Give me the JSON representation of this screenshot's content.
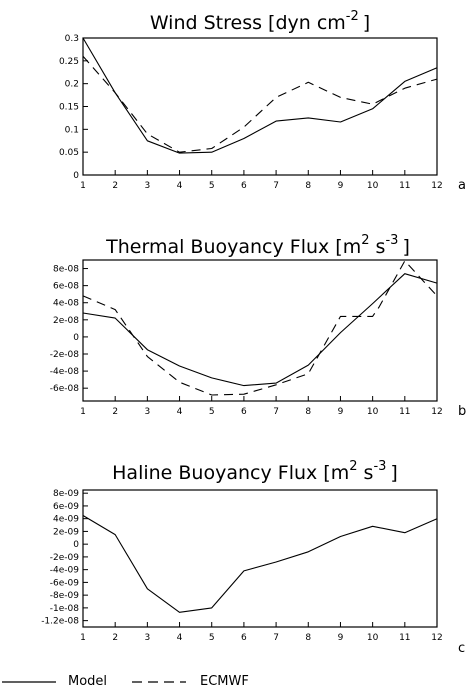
{
  "legend": {
    "model_label": "Model",
    "ecmwf_label": "ECMWF"
  },
  "chart_data": [
    {
      "type": "line",
      "panel_label": "a",
      "title": "Wind Stress [dyn cm",
      "title_sup": "-2",
      "title_end": "]",
      "x": [
        1,
        2,
        3,
        4,
        5,
        6,
        7,
        8,
        9,
        10,
        11,
        12
      ],
      "x_ticks": [
        "1",
        "2",
        "3",
        "4",
        "5",
        "6",
        "7",
        "8",
        "9",
        "10",
        "11",
        "12"
      ],
      "ylim": [
        0,
        0.3
      ],
      "y_ticks": [
        0,
        0.05,
        0.1,
        0.15,
        0.2,
        0.25,
        0.3
      ],
      "y_tick_labels": [
        "0",
        "0.05",
        "0.1",
        "0.15",
        "0.2",
        "0.25",
        "0.3"
      ],
      "series": [
        {
          "name": "Model",
          "style": "solid",
          "values": [
            0.3,
            0.18,
            0.075,
            0.048,
            0.05,
            0.08,
            0.118,
            0.125,
            0.116,
            0.145,
            0.205,
            0.235
          ]
        },
        {
          "name": "ECMWF",
          "style": "dashed",
          "values": [
            0.26,
            0.18,
            0.09,
            0.05,
            0.058,
            0.105,
            0.17,
            0.203,
            0.17,
            0.155,
            0.19,
            0.21
          ]
        }
      ]
    },
    {
      "type": "line",
      "panel_label": "b",
      "title": "Thermal Buoyancy Flux [m",
      "title_mid": " s",
      "title_sup1": "2",
      "title_sup2": "-3",
      "title_end": "]",
      "x": [
        1,
        2,
        3,
        4,
        5,
        6,
        7,
        8,
        9,
        10,
        11,
        12
      ],
      "x_ticks": [
        "1",
        "2",
        "3",
        "4",
        "5",
        "6",
        "7",
        "8",
        "9",
        "10",
        "11",
        "12"
      ],
      "ylim": [
        -7.5e-08,
        9e-08
      ],
      "y_ticks": [
        -6e-08,
        -4e-08,
        -2e-08,
        0,
        2e-08,
        4e-08,
        6e-08,
        8e-08
      ],
      "y_tick_labels": [
        "-6e-08",
        "-4e-08",
        "-2e-08",
        "0",
        "2e-08",
        "4e-08",
        "6e-08",
        "8e-08"
      ],
      "series": [
        {
          "name": "Model",
          "style": "solid",
          "x": [
            1,
            2,
            3,
            4,
            5,
            6,
            7,
            8,
            9,
            10,
            11,
            12
          ],
          "values": [
            2.8e-08,
            2.2e-08,
            -1.5e-08,
            -3.4e-08,
            -4.8e-08,
            -5.7e-08,
            -5.4e-08,
            -3.3e-08,
            5e-09,
            3.9e-08,
            7.4e-08,
            6.3e-08
          ]
        },
        {
          "name": "ECMWF",
          "style": "dashed",
          "x": [
            1,
            2,
            3,
            4,
            5,
            6,
            7,
            8,
            9,
            10,
            10.2,
            11,
            12
          ],
          "values": [
            4.8e-08,
            3.2e-08,
            -2.3e-08,
            -5.3e-08,
            -6.8e-08,
            -6.7e-08,
            -5.6e-08,
            -4.3e-08,
            2.4e-08,
            2.4e-08,
            3.5e-08,
            8.9e-08,
            4.8e-08
          ]
        }
      ]
    },
    {
      "type": "line",
      "panel_label": "c",
      "title": "Haline Buoyancy Flux [m",
      "title_mid": " s",
      "title_sup1": "2",
      "title_sup2": "-3",
      "title_end": "]",
      "x": [
        1,
        2,
        3,
        4,
        5,
        6,
        7,
        8,
        9,
        10,
        11,
        12
      ],
      "x_ticks": [
        "1",
        "2",
        "3",
        "4",
        "5",
        "6",
        "7",
        "8",
        "9",
        "10",
        "11",
        "12"
      ],
      "ylim": [
        -1.3e-08,
        8.5e-09
      ],
      "y_ticks": [
        -1.2e-08,
        -1e-08,
        -8e-09,
        -6e-09,
        -4e-09,
        -2e-09,
        0,
        2e-09,
        4e-09,
        6e-09,
        8e-09
      ],
      "y_tick_labels": [
        "-1.2e-08",
        "-1e-08",
        "-8e-09",
        "-6e-09",
        "-4e-09",
        "-2e-09",
        "0",
        "2e-09",
        "4e-09",
        "6e-09",
        "8e-09"
      ],
      "series": [
        {
          "name": "Model",
          "style": "solid",
          "values": [
            4.5e-09,
            1.5e-09,
            -7e-09,
            -1.07e-08,
            -1e-08,
            -4.2e-09,
            -2.8e-09,
            -1.2e-09,
            1.2e-09,
            2.8e-09,
            1.8e-09,
            4e-09
          ]
        }
      ]
    }
  ]
}
